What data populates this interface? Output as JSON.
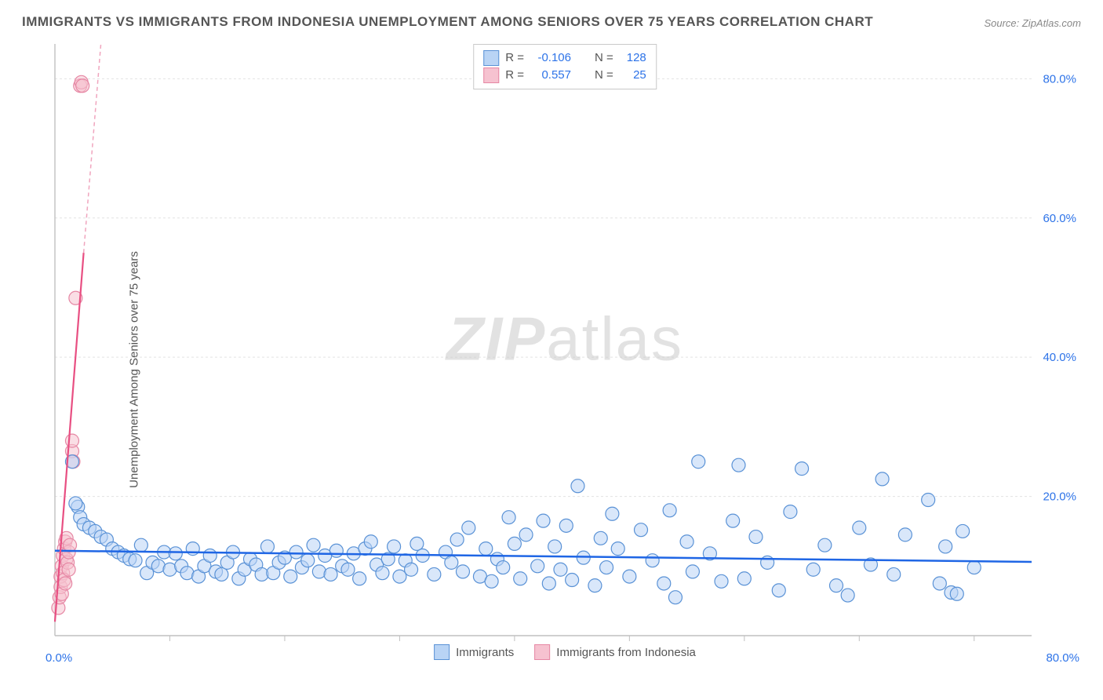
{
  "title": "IMMIGRANTS VS IMMIGRANTS FROM INDONESIA UNEMPLOYMENT AMONG SENIORS OVER 75 YEARS CORRELATION CHART",
  "source_prefix": "Source: ",
  "source_name": "ZipAtlas.com",
  "ylabel": "Unemployment Among Seniors over 75 years",
  "watermark_bold": "ZIP",
  "watermark_rest": "atlas",
  "chart": {
    "type": "scatter",
    "xlim": [
      0,
      85
    ],
    "ylim": [
      0,
      85
    ],
    "xtick_step": 10,
    "ytick_labels": [
      "20.0%",
      "40.0%",
      "60.0%",
      "80.0%"
    ],
    "ytick_values": [
      20,
      40,
      60,
      80
    ],
    "xtick_values": [
      10,
      20,
      30,
      40,
      50,
      60,
      70,
      80
    ],
    "grid_color": "#e3e3e3",
    "grid_dash": "3,3",
    "axis_line_color": "#c0c0c0",
    "background_color": "#ffffff",
    "point_radius": 8.5,
    "point_stroke_width": 1.2,
    "origin_label": "0.0%",
    "xmax_label": "80.0%",
    "series": [
      {
        "name": "Immigrants",
        "fill": "#b9d4f5",
        "stroke": "#5a92d6",
        "fill_opacity": 0.55,
        "R": "-0.106",
        "N": "128",
        "trend": {
          "x1": 0,
          "y1": 12.2,
          "x2": 85,
          "y2": 10.6,
          "color": "#1f66e5",
          "width": 2.5,
          "dash": ""
        },
        "points": [
          [
            1.5,
            25
          ],
          [
            2,
            18.5
          ],
          [
            2.2,
            17
          ],
          [
            1.8,
            19
          ],
          [
            2.5,
            16
          ],
          [
            3,
            15.5
          ],
          [
            3.5,
            15
          ],
          [
            4,
            14.2
          ],
          [
            4.5,
            13.8
          ],
          [
            5,
            12.5
          ],
          [
            5.5,
            12
          ],
          [
            6,
            11.5
          ],
          [
            6.5,
            11
          ],
          [
            7,
            10.8
          ],
          [
            7.5,
            13
          ],
          [
            8,
            9
          ],
          [
            8.5,
            10.5
          ],
          [
            9,
            10
          ],
          [
            9.5,
            12
          ],
          [
            10,
            9.5
          ],
          [
            10.5,
            11.8
          ],
          [
            11,
            10
          ],
          [
            11.5,
            9
          ],
          [
            12,
            12.5
          ],
          [
            12.5,
            8.5
          ],
          [
            13,
            10
          ],
          [
            13.5,
            11.5
          ],
          [
            14,
            9.2
          ],
          [
            14.5,
            8.8
          ],
          [
            15,
            10.5
          ],
          [
            15.5,
            12
          ],
          [
            16,
            8.2
          ],
          [
            16.5,
            9.5
          ],
          [
            17,
            11
          ],
          [
            17.5,
            10.2
          ],
          [
            18,
            8.8
          ],
          [
            18.5,
            12.8
          ],
          [
            19,
            9
          ],
          [
            19.5,
            10.5
          ],
          [
            20,
            11.2
          ],
          [
            20.5,
            8.5
          ],
          [
            21,
            12
          ],
          [
            21.5,
            9.8
          ],
          [
            22,
            10.8
          ],
          [
            22.5,
            13
          ],
          [
            23,
            9.2
          ],
          [
            23.5,
            11.5
          ],
          [
            24,
            8.8
          ],
          [
            24.5,
            12.2
          ],
          [
            25,
            10
          ],
          [
            25.5,
            9.5
          ],
          [
            26,
            11.8
          ],
          [
            26.5,
            8.2
          ],
          [
            27,
            12.5
          ],
          [
            27.5,
            13.5
          ],
          [
            28,
            10.2
          ],
          [
            28.5,
            9
          ],
          [
            29,
            11
          ],
          [
            29.5,
            12.8
          ],
          [
            30,
            8.5
          ],
          [
            30.5,
            10.8
          ],
          [
            31,
            9.5
          ],
          [
            31.5,
            13.2
          ],
          [
            32,
            11.5
          ],
          [
            33,
            8.8
          ],
          [
            34,
            12
          ],
          [
            34.5,
            10.5
          ],
          [
            35,
            13.8
          ],
          [
            35.5,
            9.2
          ],
          [
            36,
            15.5
          ],
          [
            37,
            8.5
          ],
          [
            37.5,
            12.5
          ],
          [
            38,
            7.8
          ],
          [
            38.5,
            11
          ],
          [
            39,
            9.8
          ],
          [
            39.5,
            17
          ],
          [
            40,
            13.2
          ],
          [
            40.5,
            8.2
          ],
          [
            41,
            14.5
          ],
          [
            42,
            10
          ],
          [
            42.5,
            16.5
          ],
          [
            43,
            7.5
          ],
          [
            43.5,
            12.8
          ],
          [
            44,
            9.5
          ],
          [
            44.5,
            15.8
          ],
          [
            45,
            8
          ],
          [
            45.5,
            21.5
          ],
          [
            46,
            11.2
          ],
          [
            47,
            7.2
          ],
          [
            47.5,
            14
          ],
          [
            48,
            9.8
          ],
          [
            48.5,
            17.5
          ],
          [
            49,
            12.5
          ],
          [
            50,
            8.5
          ],
          [
            51,
            15.2
          ],
          [
            52,
            10.8
          ],
          [
            53,
            7.5
          ],
          [
            53.5,
            18
          ],
          [
            54,
            5.5
          ],
          [
            55,
            13.5
          ],
          [
            55.5,
            9.2
          ],
          [
            56,
            25
          ],
          [
            57,
            11.8
          ],
          [
            58,
            7.8
          ],
          [
            59,
            16.5
          ],
          [
            59.5,
            24.5
          ],
          [
            60,
            8.2
          ],
          [
            61,
            14.2
          ],
          [
            62,
            10.5
          ],
          [
            63,
            6.5
          ],
          [
            64,
            17.8
          ],
          [
            65,
            24
          ],
          [
            66,
            9.5
          ],
          [
            67,
            13
          ],
          [
            68,
            7.2
          ],
          [
            69,
            5.8
          ],
          [
            70,
            15.5
          ],
          [
            71,
            10.2
          ],
          [
            72,
            22.5
          ],
          [
            73,
            8.8
          ],
          [
            74,
            14.5
          ],
          [
            76,
            19.5
          ],
          [
            77,
            7.5
          ],
          [
            77.5,
            12.8
          ],
          [
            78,
            6.2
          ],
          [
            78.5,
            6
          ],
          [
            79,
            15
          ],
          [
            80,
            9.8
          ]
        ]
      },
      {
        "name": "Immigrants from Indonesia",
        "fill": "#f6c2d0",
        "stroke": "#e687a4",
        "fill_opacity": 0.55,
        "R": "0.557",
        "N": "25",
        "trend": {
          "x1": 0,
          "y1": 2,
          "x2": 2.5,
          "y2": 55,
          "color": "#e84f82",
          "width": 2.2,
          "dash": ""
        },
        "trend_ext": {
          "x1": 2.5,
          "y1": 55,
          "x2": 4,
          "y2": 85,
          "color": "#f0a5be",
          "width": 1.5,
          "dash": "5,4"
        },
        "points": [
          [
            0.3,
            4
          ],
          [
            0.4,
            5.5
          ],
          [
            0.5,
            7
          ],
          [
            0.5,
            8.5
          ],
          [
            0.6,
            6
          ],
          [
            0.6,
            10
          ],
          [
            0.7,
            11.5
          ],
          [
            0.7,
            9
          ],
          [
            0.8,
            12.5
          ],
          [
            0.8,
            8
          ],
          [
            0.9,
            13.5
          ],
          [
            0.9,
            7.5
          ],
          [
            1.0,
            11
          ],
          [
            1.0,
            14
          ],
          [
            1.1,
            10.5
          ],
          [
            1.2,
            12
          ],
          [
            1.2,
            9.5
          ],
          [
            1.3,
            13
          ],
          [
            1.5,
            26.5
          ],
          [
            1.5,
            28
          ],
          [
            1.6,
            25
          ],
          [
            1.8,
            48.5
          ],
          [
            2.2,
            79
          ],
          [
            2.3,
            79.5
          ],
          [
            2.4,
            79
          ]
        ]
      }
    ]
  },
  "legend_top_labels": {
    "R": "R =",
    "N": "N ="
  },
  "legend_bottom": [
    {
      "label": "Immigrants",
      "series_idx": 0
    },
    {
      "label": "Immigrants from Indonesia",
      "series_idx": 1
    }
  ]
}
